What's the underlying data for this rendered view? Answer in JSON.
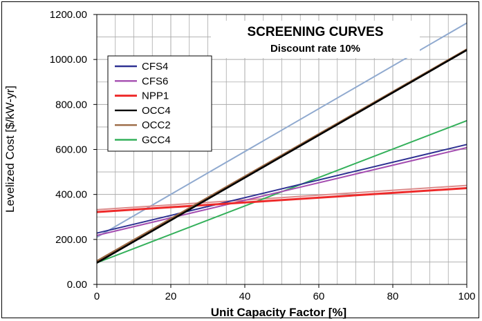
{
  "chart_data": {
    "type": "line",
    "title": "SCREENING CURVES",
    "subtitle": "Discount rate 10%",
    "xlabel": "Unit Capacity Factor [%]",
    "ylabel": "Levelized Cost [$/kW-yr]",
    "xlim": [
      0,
      100
    ],
    "ylim": [
      0,
      1200
    ],
    "x_ticks": [
      "0",
      "20",
      "40",
      "60",
      "80",
      "100"
    ],
    "y_ticks": [
      "0.00",
      "200.00",
      "400.00",
      "600.00",
      "800.00",
      "1000.00",
      "1200.00"
    ],
    "grid": true,
    "legend_position": "top-left",
    "series": [
      {
        "name": "CFS4",
        "color": "#2e3192",
        "x": [
          0,
          100
        ],
        "values": [
          228,
          622
        ],
        "in_legend": true
      },
      {
        "name": "CFS6",
        "color": "#a44db0",
        "x": [
          0,
          100
        ],
        "values": [
          218,
          608
        ],
        "in_legend": true
      },
      {
        "name": "NPP1",
        "color": "#ee2a2a",
        "x": [
          0,
          100
        ],
        "values": [
          322,
          428
        ],
        "in_legend": true
      },
      {
        "name": "OCC4",
        "color": "#000000",
        "x": [
          0,
          100
        ],
        "values": [
          96,
          1042
        ],
        "in_legend": true
      },
      {
        "name": "OCC2",
        "color": "#9c6a45",
        "x": [
          0,
          100
        ],
        "values": [
          104,
          1045
        ],
        "in_legend": true
      },
      {
        "name": "GCC4",
        "color": "#33b05a",
        "x": [
          0,
          100
        ],
        "values": [
          96,
          728
        ],
        "in_legend": true
      },
      {
        "color": "#8fa9cf",
        "x": [
          0,
          100
        ],
        "values": [
          210,
          1162
        ],
        "in_legend": false
      },
      {
        "color": "#dc8a8a",
        "x": [
          0,
          100
        ],
        "values": [
          332,
          440
        ],
        "in_legend": false
      }
    ]
  }
}
